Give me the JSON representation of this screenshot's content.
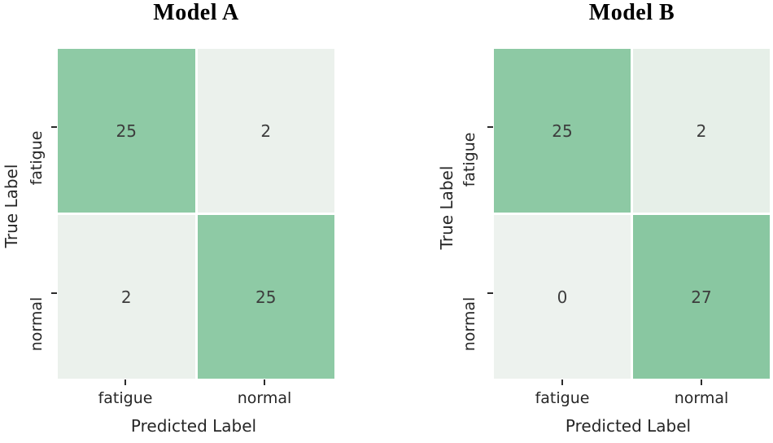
{
  "chart_data": [
    {
      "type": "heatmap",
      "title": "Model A",
      "xlabel": "Predicted Label",
      "ylabel": "True Label",
      "x_categories": [
        "fatigue",
        "normal"
      ],
      "y_categories": [
        "fatigue",
        "normal"
      ],
      "matrix": [
        [
          25,
          2
        ],
        [
          2,
          25
        ]
      ],
      "cell_colors": [
        [
          "#8ecaa5",
          "#ebf1ec"
        ],
        [
          "#ebf1ec",
          "#8ecaa5"
        ]
      ],
      "value_text_color": "#3d3d3d",
      "layout": {
        "legend": "none",
        "grid": "off",
        "colormap": "light-green"
      }
    },
    {
      "type": "heatmap",
      "title": "Model B",
      "xlabel": "Predicted Label",
      "ylabel": "True Label",
      "x_categories": [
        "fatigue",
        "normal"
      ],
      "y_categories": [
        "fatigue",
        "normal"
      ],
      "matrix": [
        [
          25,
          2
        ],
        [
          0,
          27
        ]
      ],
      "cell_colors": [
        [
          "#8dc9a4",
          "#e6efe8"
        ],
        [
          "#edf2ee",
          "#89c7a1"
        ]
      ],
      "value_text_color": "#3d3d3d",
      "layout": {
        "legend": "none",
        "grid": "off",
        "colormap": "light-green"
      }
    }
  ]
}
